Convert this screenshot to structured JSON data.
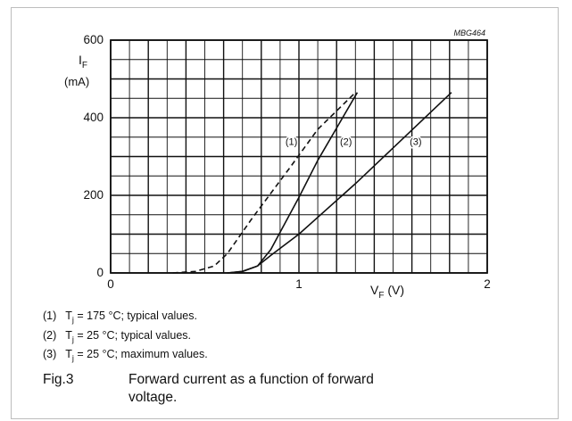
{
  "chart_data": {
    "type": "line",
    "code": "MBG464",
    "ylabel_symbol": "I",
    "ylabel_sub": "F",
    "ylabel_unit": "(mA)",
    "xlabel_symbol": "V",
    "xlabel_sub": "F",
    "xlabel_unit": "(V)",
    "xlim": [
      0,
      2
    ],
    "ylim": [
      0,
      600
    ],
    "x_ticks": [
      {
        "value": 0,
        "label": "0"
      },
      {
        "value": 1,
        "label": "1"
      },
      {
        "value": 2,
        "label": "2"
      }
    ],
    "y_ticks": [
      {
        "value": 0,
        "label": "0"
      },
      {
        "value": 200,
        "label": "200"
      },
      {
        "value": 400,
        "label": "400"
      },
      {
        "value": 600,
        "label": "600"
      }
    ],
    "grid": true,
    "series": [
      {
        "name": "(1)",
        "dash": true,
        "points": [
          [
            0.33,
            0
          ],
          [
            0.45,
            4
          ],
          [
            0.55,
            18
          ],
          [
            0.62,
            50
          ],
          [
            0.75,
            140
          ],
          [
            0.95,
            270
          ],
          [
            1.1,
            370
          ],
          [
            1.3,
            465
          ]
        ]
      },
      {
        "name": "(2)",
        "dash": false,
        "points": [
          [
            0.62,
            0
          ],
          [
            0.7,
            4
          ],
          [
            0.78,
            18
          ],
          [
            0.85,
            60
          ],
          [
            1.0,
            195
          ],
          [
            1.1,
            290
          ],
          [
            1.31,
            465
          ]
        ]
      },
      {
        "name": "(3)",
        "dash": false,
        "points": [
          [
            0.62,
            0
          ],
          [
            0.7,
            4
          ],
          [
            0.78,
            18
          ],
          [
            0.85,
            45
          ],
          [
            1.0,
            100
          ],
          [
            1.3,
            230
          ],
          [
            1.81,
            465
          ]
        ]
      }
    ],
    "series_labels": [
      {
        "text": "(1)",
        "x": 0.96,
        "y": 330
      },
      {
        "text": "(2)",
        "x": 1.25,
        "y": 330
      },
      {
        "text": "(3)",
        "x": 1.62,
        "y": 330
      }
    ],
    "legend": [
      {
        "num": "(1)",
        "sym": "T",
        "sub": "j",
        "text": " = 175 °C; typical values."
      },
      {
        "num": "(2)",
        "sym": "T",
        "sub": "j",
        "text": " = 25 °C; typical values."
      },
      {
        "num": "(3)",
        "sym": "T",
        "sub": "j",
        "text": " = 25 °C; maximum values."
      }
    ],
    "caption_label": "Fig.3",
    "caption_line1": "Forward current as a function of forward",
    "caption_line2": "voltage."
  }
}
